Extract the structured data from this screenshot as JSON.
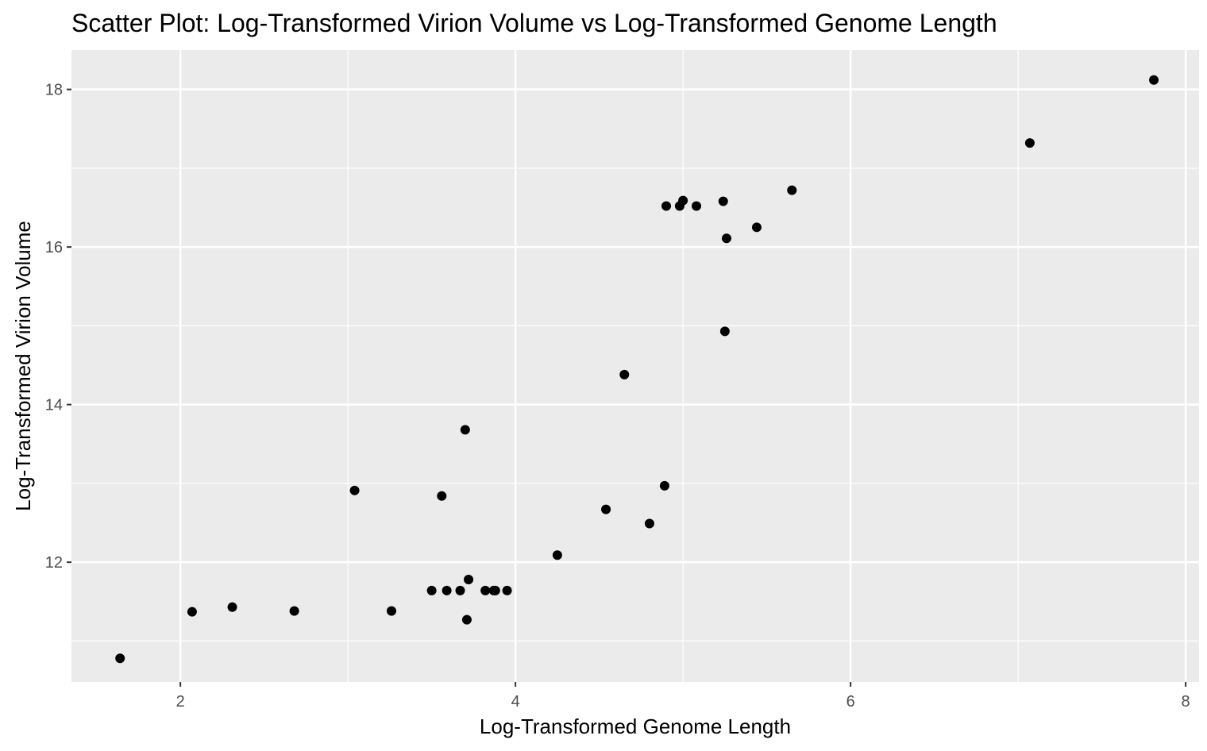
{
  "chart_data": {
    "type": "scatter",
    "title": "Scatter Plot: Log-Transformed Virion Volume vs Log-Transformed Genome Length",
    "xlabel": "Log-Transformed Genome Length",
    "ylabel": "Log-Transformed Virion Volume",
    "xlim": [
      1.35,
      8.08
    ],
    "ylim": [
      10.48,
      18.5
    ],
    "xticks": [
      2,
      4,
      6,
      8
    ],
    "yticks": [
      12,
      14,
      16,
      18
    ],
    "grid": true,
    "legend": "none",
    "colors": {
      "panel": "#ebebeb",
      "grid": "#ffffff",
      "point": "#000000",
      "tick": "#4d4d4d"
    },
    "points": [
      {
        "x": 1.64,
        "y": 10.78
      },
      {
        "x": 2.07,
        "y": 11.37
      },
      {
        "x": 2.31,
        "y": 11.43
      },
      {
        "x": 2.68,
        "y": 11.38
      },
      {
        "x": 3.04,
        "y": 12.91
      },
      {
        "x": 3.26,
        "y": 11.38
      },
      {
        "x": 3.5,
        "y": 11.64
      },
      {
        "x": 3.56,
        "y": 12.84
      },
      {
        "x": 3.59,
        "y": 11.64
      },
      {
        "x": 3.67,
        "y": 11.64
      },
      {
        "x": 3.7,
        "y": 13.68
      },
      {
        "x": 3.71,
        "y": 11.27
      },
      {
        "x": 3.72,
        "y": 11.78
      },
      {
        "x": 3.82,
        "y": 11.64
      },
      {
        "x": 3.87,
        "y": 11.64
      },
      {
        "x": 3.88,
        "y": 11.64
      },
      {
        "x": 3.95,
        "y": 11.64
      },
      {
        "x": 4.25,
        "y": 12.09
      },
      {
        "x": 4.54,
        "y": 12.67
      },
      {
        "x": 4.65,
        "y": 14.38
      },
      {
        "x": 4.8,
        "y": 12.49
      },
      {
        "x": 4.89,
        "y": 12.97
      },
      {
        "x": 4.9,
        "y": 16.52
      },
      {
        "x": 4.98,
        "y": 16.52
      },
      {
        "x": 5.0,
        "y": 16.59
      },
      {
        "x": 5.08,
        "y": 16.52
      },
      {
        "x": 5.24,
        "y": 16.58
      },
      {
        "x": 5.25,
        "y": 14.93
      },
      {
        "x": 5.26,
        "y": 16.11
      },
      {
        "x": 5.44,
        "y": 16.25
      },
      {
        "x": 5.65,
        "y": 16.72
      },
      {
        "x": 7.07,
        "y": 17.32
      },
      {
        "x": 7.81,
        "y": 18.12
      }
    ]
  }
}
